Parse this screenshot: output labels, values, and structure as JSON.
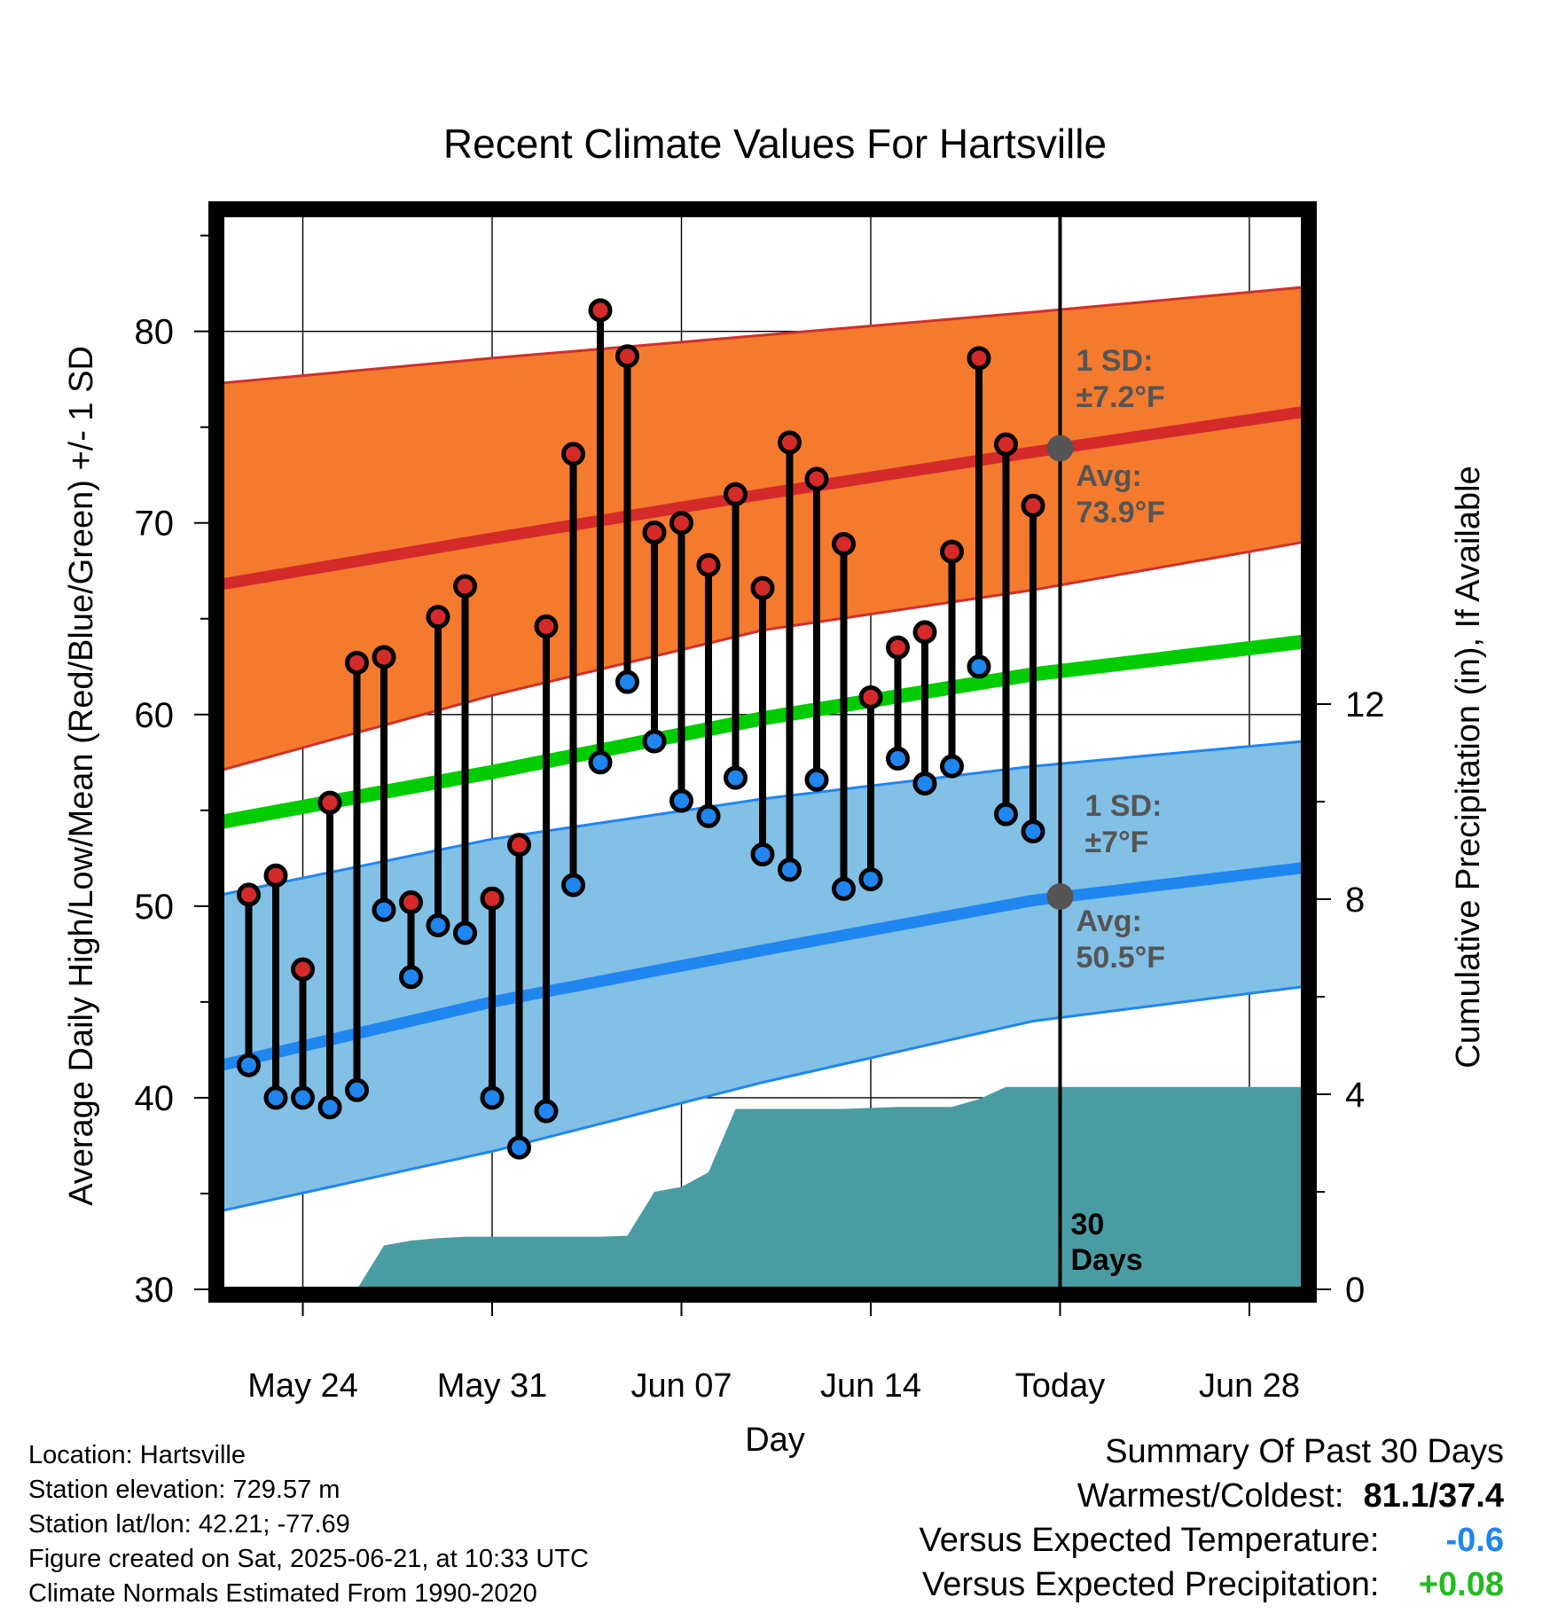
{
  "chart_data": {
    "type": "line",
    "title": "Recent Climate Values For Hartsville",
    "xlabel": "Day",
    "ylabel": "Average Daily High/Low/Mean (Red/Blue/Green) +/- 1 SD",
    "y2label": "Cumulative Precipitation (in), If Available",
    "ylim": [
      30,
      86
    ],
    "y_ticks": [
      30,
      40,
      50,
      60,
      70,
      80
    ],
    "y2lim": [
      0,
      22
    ],
    "y2_ticks": [
      0,
      4,
      8,
      12
    ],
    "x_range": [
      "2025-05-21",
      "2025-06-30"
    ],
    "x_ticks": [
      {
        "date": "2025-05-24",
        "label": "May 24"
      },
      {
        "date": "2025-05-31",
        "label": "May 31"
      },
      {
        "date": "2025-06-07",
        "label": "Jun 07"
      },
      {
        "date": "2025-06-14",
        "label": "Jun 14"
      },
      {
        "date": "2025-06-21",
        "label": "Today"
      },
      {
        "date": "2025-06-28",
        "label": "Jun 28"
      }
    ],
    "grid": true,
    "today_marker": {
      "date": "2025-06-21",
      "label_line1": "30",
      "label_line2": "Days"
    },
    "daily": {
      "dates": [
        "2025-05-22",
        "2025-05-23",
        "2025-05-24",
        "2025-05-25",
        "2025-05-26",
        "2025-05-27",
        "2025-05-28",
        "2025-05-29",
        "2025-05-30",
        "2025-05-31",
        "2025-06-01",
        "2025-06-02",
        "2025-06-03",
        "2025-06-04",
        "2025-06-05",
        "2025-06-06",
        "2025-06-07",
        "2025-06-08",
        "2025-06-09",
        "2025-06-10",
        "2025-06-11",
        "2025-06-12",
        "2025-06-13",
        "2025-06-14",
        "2025-06-15",
        "2025-06-16",
        "2025-06-17",
        "2025-06-18",
        "2025-06-19",
        "2025-06-20"
      ],
      "high": [
        50.6,
        51.6,
        46.7,
        55.4,
        62.7,
        63.0,
        50.2,
        65.1,
        66.7,
        50.4,
        53.2,
        64.6,
        73.6,
        81.1,
        78.7,
        69.5,
        70.0,
        67.8,
        71.5,
        66.6,
        74.2,
        72.3,
        68.9,
        60.9,
        63.5,
        64.3,
        68.5,
        78.6,
        74.1,
        70.9
      ],
      "low": [
        41.7,
        40.0,
        40.0,
        39.5,
        40.4,
        49.8,
        46.3,
        49.0,
        48.6,
        40.0,
        37.4,
        39.3,
        51.1,
        57.5,
        61.7,
        58.6,
        55.5,
        54.7,
        56.7,
        52.7,
        51.9,
        56.6,
        50.9,
        51.4,
        57.7,
        56.4,
        57.3,
        62.5,
        54.8,
        53.9
      ]
    },
    "normals": {
      "dates": [
        "2025-05-21",
        "2025-05-31",
        "2025-06-10",
        "2025-06-20",
        "2025-06-30"
      ],
      "high_avg": [
        66.8,
        69.2,
        71.5,
        73.7,
        75.8
      ],
      "high_upper": [
        77.3,
        78.6,
        79.8,
        81.0,
        82.3
      ],
      "high_lower": [
        57.1,
        61.0,
        64.4,
        66.5,
        69.0
      ],
      "mean_avg": [
        54.4,
        57.0,
        59.8,
        62.1,
        63.8
      ],
      "low_avg": [
        41.7,
        45.0,
        47.7,
        50.3,
        52.0
      ],
      "low_upper": [
        50.6,
        53.5,
        55.6,
        57.3,
        58.6
      ],
      "low_lower": [
        34.1,
        37.2,
        40.8,
        44.0,
        45.8
      ]
    },
    "precipitation": {
      "dates": [
        "2025-05-21",
        "2025-05-26",
        "2025-05-27",
        "2025-05-28",
        "2025-05-29",
        "2025-05-30",
        "2025-06-02",
        "2025-06-03",
        "2025-06-04",
        "2025-06-05",
        "2025-06-06",
        "2025-06-07",
        "2025-06-08",
        "2025-06-09",
        "2025-06-10",
        "2025-06-11",
        "2025-06-12",
        "2025-06-13",
        "2025-06-14",
        "2025-06-15",
        "2025-06-16",
        "2025-06-17",
        "2025-06-18",
        "2025-06-19",
        "2025-06-30"
      ],
      "cumulative": [
        0.0,
        0.0,
        0.9,
        1.0,
        1.05,
        1.08,
        1.08,
        1.08,
        1.08,
        1.1,
        2.0,
        2.1,
        2.4,
        3.7,
        3.7,
        3.7,
        3.7,
        3.7,
        3.72,
        3.74,
        3.74,
        3.74,
        3.9,
        4.15,
        4.15
      ]
    },
    "annotations": {
      "high_sd": {
        "line1": "1 SD:",
        "line2": "±7.2°F"
      },
      "high_avg": {
        "line1": "Avg:",
        "line2": "73.9°F",
        "value": 73.9
      },
      "low_sd": {
        "line1": "1 SD:",
        "line2": "±7°F"
      },
      "low_avg": {
        "line1": "Avg:",
        "line2": "50.5°F",
        "value": 50.5
      }
    },
    "colors": {
      "high_band": "#f47a2e",
      "high_band_edge": "#d0302a",
      "high_line": "#d42a2a",
      "mean_line": "#00cc00",
      "low_band": "#82c0e6",
      "low_band_edge": "#1f86f0",
      "low_line": "#1f86f0",
      "precip_fill": "#4a9ca3",
      "high_dot": "#d42a2a",
      "low_dot": "#1f86f0",
      "annotation_text": "#555555",
      "avg_dot": "#555555"
    }
  },
  "meta": {
    "location": "Location: Hartsville",
    "elevation": "Station elevation: 729.57 m",
    "latlon": "Station lat/lon: 42.21; -77.69",
    "created": "Figure created on Sat, 2025-06-21, at 10:33 UTC",
    "normals": "Climate Normals Estimated From 1990-2020"
  },
  "summary": {
    "title": "Summary Of Past 30 Days",
    "warm_cold_label": "Warmest/Coldest:",
    "warm_cold_value": "81.1/37.4",
    "temp_label": "Versus Expected Temperature:",
    "temp_value": "-0.6",
    "temp_color": "#1f86f0",
    "precip_label": "Versus Expected Precipitation:",
    "precip_value": "+0.08",
    "precip_color": "#22bb22"
  }
}
